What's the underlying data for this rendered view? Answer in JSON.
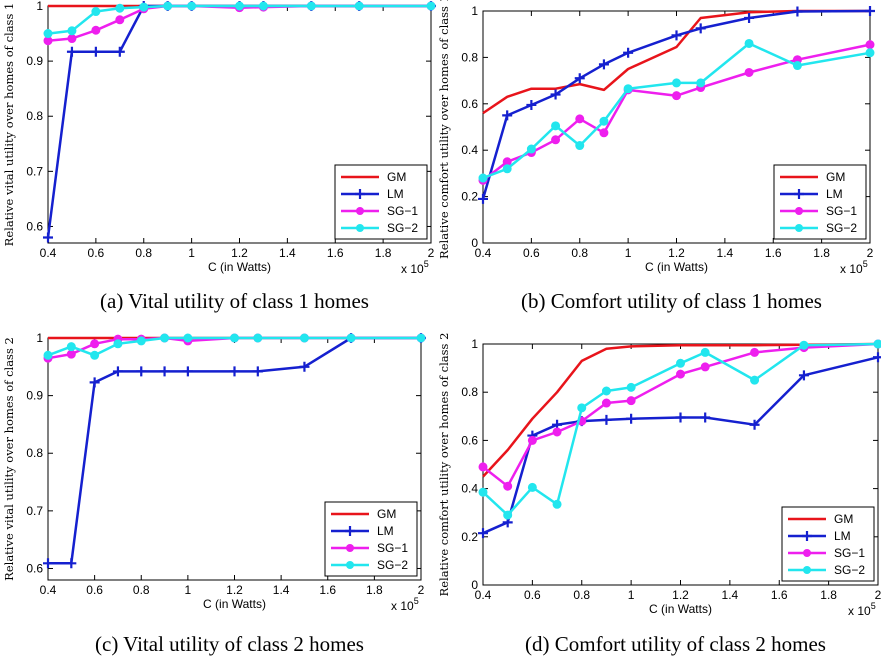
{
  "chart_data": [
    {
      "type": "line",
      "caption": "(a) Vital utility of class 1 homes",
      "xlabel": "C (in Watts)",
      "ylabel": "Relative vital utility over homes of class 1",
      "x_multiplier_label": "x 10",
      "x_multiplier_exp": "5",
      "xlim": [
        0.4,
        2
      ],
      "ylim": [
        0.57,
        1
      ],
      "xticks": [
        0.4,
        0.6,
        0.8,
        1,
        1.2,
        1.4,
        1.6,
        1.8,
        2
      ],
      "xtick_labels": [
        "0.4",
        "0.6",
        "0.8",
        "1",
        "1.2",
        "1.4",
        "1.6",
        "1.8",
        "2"
      ],
      "yticks": [
        0.6,
        0.7,
        0.8,
        0.9,
        1
      ],
      "ytick_labels": [
        "0.6",
        "0.7",
        "0.8",
        "0.9",
        "1"
      ],
      "legend_position": "bottom-right",
      "series": [
        {
          "name": "GM",
          "color": "#e8141b",
          "marker": "none",
          "x": [
            0.4,
            0.5,
            0.6,
            0.7,
            0.8,
            0.9,
            1,
            1.2,
            1.3,
            1.5,
            1.7,
            2
          ],
          "y": [
            1,
            1,
            1,
            1,
            1,
            1,
            1,
            1,
            1,
            1,
            1,
            1
          ]
        },
        {
          "name": "LM",
          "color": "#1520cf",
          "marker": "plus",
          "x": [
            0.4,
            0.5,
            0.6,
            0.7,
            0.8,
            0.9,
            1,
            1.2,
            1.3,
            1.5,
            1.7,
            2
          ],
          "y": [
            0.58,
            0.917,
            0.917,
            0.917,
            1,
            1,
            1,
            1,
            1,
            1,
            1,
            1
          ]
        },
        {
          "name": "SG−1",
          "color": "#ee1fee",
          "marker": "circle",
          "x": [
            0.4,
            0.5,
            0.6,
            0.7,
            0.8,
            0.9,
            1,
            1.2,
            1.3,
            1.5,
            1.7,
            2
          ],
          "y": [
            0.937,
            0.941,
            0.956,
            0.975,
            0.995,
            1,
            1,
            0.997,
            0.998,
            1,
            1,
            1
          ]
        },
        {
          "name": "SG−2",
          "color": "#22e6ee",
          "marker": "circle",
          "x": [
            0.4,
            0.5,
            0.6,
            0.7,
            0.8,
            0.9,
            1,
            1.2,
            1.3,
            1.5,
            1.7,
            2
          ],
          "y": [
            0.95,
            0.955,
            0.99,
            0.996,
            0.998,
            1,
            1,
            1,
            1,
            1,
            1,
            1
          ]
        }
      ]
    },
    {
      "type": "line",
      "caption": "(b) Comfort utility of class 1 homes",
      "xlabel": "C (in Watts)",
      "ylabel": "Relative comfort utility over homes of class 1",
      "x_multiplier_label": "x 10",
      "x_multiplier_exp": "5",
      "xlim": [
        0.4,
        2
      ],
      "ylim": [
        0,
        1
      ],
      "xticks": [
        0.4,
        0.6,
        0.8,
        1,
        1.2,
        1.4,
        1.6,
        1.8,
        2
      ],
      "xtick_labels": [
        "0.4",
        "0.6",
        "0.8",
        "1",
        "1.2",
        "1.4",
        "1.6",
        "1.8",
        "2"
      ],
      "yticks": [
        0,
        0.2,
        0.4,
        0.6,
        0.8,
        1
      ],
      "ytick_labels": [
        "0",
        "0.2",
        "0.4",
        "0.6",
        "0.8",
        "1"
      ],
      "legend_position": "bottom-right",
      "series": [
        {
          "name": "GM",
          "color": "#e8141b",
          "marker": "none",
          "x": [
            0.4,
            0.5,
            0.6,
            0.7,
            0.8,
            0.9,
            1,
            1.2,
            1.3,
            1.5,
            1.7,
            2
          ],
          "y": [
            0.56,
            0.63,
            0.665,
            0.665,
            0.685,
            0.66,
            0.75,
            0.845,
            0.97,
            0.995,
            1,
            1
          ]
        },
        {
          "name": "LM",
          "color": "#1520cf",
          "marker": "plus",
          "x": [
            0.4,
            0.5,
            0.6,
            0.7,
            0.8,
            0.9,
            1,
            1.2,
            1.3,
            1.5,
            1.7,
            2
          ],
          "y": [
            0.19,
            0.55,
            0.595,
            0.64,
            0.71,
            0.77,
            0.82,
            0.895,
            0.925,
            0.97,
            0.998,
            1
          ]
        },
        {
          "name": "SG−1",
          "color": "#ee1fee",
          "marker": "circle",
          "x": [
            0.4,
            0.5,
            0.6,
            0.7,
            0.8,
            0.9,
            1,
            1.2,
            1.3,
            1.5,
            1.7,
            2
          ],
          "y": [
            0.27,
            0.35,
            0.39,
            0.445,
            0.535,
            0.475,
            0.66,
            0.635,
            0.67,
            0.735,
            0.79,
            0.855
          ]
        },
        {
          "name": "SG−2",
          "color": "#22e6ee",
          "marker": "circle",
          "x": [
            0.4,
            0.5,
            0.6,
            0.7,
            0.8,
            0.9,
            1,
            1.2,
            1.3,
            1.5,
            1.7,
            2
          ],
          "y": [
            0.28,
            0.32,
            0.405,
            0.505,
            0.42,
            0.525,
            0.665,
            0.69,
            0.69,
            0.86,
            0.765,
            0.82
          ]
        }
      ]
    },
    {
      "type": "line",
      "caption": "(c) Vital utility of class 2 homes",
      "xlabel": "C (in Watts)",
      "ylabel": "Relative vital utility over homes of class 2",
      "x_multiplier_label": "x 10",
      "x_multiplier_exp": "5",
      "xlim": [
        0.4,
        2
      ],
      "ylim": [
        0.58,
        1
      ],
      "xticks": [
        0.4,
        0.6,
        0.8,
        1,
        1.2,
        1.4,
        1.6,
        1.8,
        2
      ],
      "xtick_labels": [
        "0.4",
        "0.6",
        "0.8",
        "1",
        "1.2",
        "1.4",
        "1.6",
        "1.8",
        "2"
      ],
      "yticks": [
        0.6,
        0.7,
        0.8,
        0.9,
        1
      ],
      "ytick_labels": [
        "0.6",
        "0.7",
        "0.8",
        "0.9",
        "1"
      ],
      "legend_position": "bottom-right",
      "series": [
        {
          "name": "GM",
          "color": "#e8141b",
          "marker": "none",
          "x": [
            0.4,
            0.5,
            0.6,
            0.7,
            0.8,
            0.9,
            1,
            1.2,
            1.3,
            1.5,
            1.7,
            2
          ],
          "y": [
            1,
            1,
            1,
            1,
            1,
            1,
            1,
            1,
            1,
            1,
            1,
            1
          ]
        },
        {
          "name": "LM",
          "color": "#1520cf",
          "marker": "plus",
          "x": [
            0.4,
            0.5,
            0.6,
            0.7,
            0.8,
            0.9,
            1,
            1.2,
            1.3,
            1.5,
            1.7,
            2
          ],
          "y": [
            0.609,
            0.609,
            0.923,
            0.942,
            0.942,
            0.942,
            0.942,
            0.942,
            0.942,
            0.95,
            1,
            1
          ]
        },
        {
          "name": "SG−1",
          "color": "#ee1fee",
          "marker": "circle",
          "x": [
            0.4,
            0.5,
            0.6,
            0.7,
            0.8,
            0.9,
            1,
            1.2,
            1.3,
            1.5,
            1.7,
            2
          ],
          "y": [
            0.965,
            0.972,
            0.99,
            0.998,
            0.998,
            1,
            0.995,
            1,
            1,
            1,
            1,
            1
          ]
        },
        {
          "name": "SG−2",
          "color": "#22e6ee",
          "marker": "circle",
          "x": [
            0.4,
            0.5,
            0.6,
            0.7,
            0.8,
            0.9,
            1,
            1.2,
            1.3,
            1.5,
            1.7,
            2
          ],
          "y": [
            0.97,
            0.985,
            0.97,
            0.99,
            0.995,
            1,
            1,
            1,
            1,
            1,
            1,
            1
          ]
        }
      ]
    },
    {
      "type": "line",
      "caption": "(d) Comfort utility of class 2 homes",
      "xlabel": "C (in Watts)",
      "ylabel": "Relative comfort utility over homes of class 2",
      "x_multiplier_label": "x 10",
      "x_multiplier_exp": "5",
      "xlim": [
        0.4,
        2
      ],
      "ylim": [
        0,
        1
      ],
      "xticks": [
        0.4,
        0.6,
        0.8,
        1,
        1.2,
        1.4,
        1.6,
        1.8,
        2
      ],
      "xtick_labels": [
        "0.4",
        "0.6",
        "0.8",
        "1",
        "1.2",
        "1.4",
        "1.6",
        "1.8",
        "2"
      ],
      "yticks": [
        0,
        0.2,
        0.4,
        0.6,
        0.8,
        1
      ],
      "ytick_labels": [
        "0",
        "0.2",
        "0.4",
        "0.6",
        "0.8",
        "1"
      ],
      "legend_position": "bottom-right",
      "series": [
        {
          "name": "GM",
          "color": "#e8141b",
          "marker": "none",
          "x": [
            0.4,
            0.5,
            0.6,
            0.7,
            0.8,
            0.9,
            1,
            1.2,
            1.3,
            1.5,
            1.7,
            2
          ],
          "y": [
            0.45,
            0.56,
            0.69,
            0.8,
            0.93,
            0.98,
            0.99,
            0.995,
            0.995,
            0.995,
            0.997,
            1
          ]
        },
        {
          "name": "LM",
          "color": "#1520cf",
          "marker": "plus",
          "x": [
            0.4,
            0.5,
            0.6,
            0.7,
            0.8,
            0.9,
            1,
            1.2,
            1.3,
            1.5,
            1.7,
            2
          ],
          "y": [
            0.215,
            0.26,
            0.62,
            0.665,
            0.68,
            0.685,
            0.69,
            0.695,
            0.695,
            0.665,
            0.87,
            0.945
          ]
        },
        {
          "name": "SG−1",
          "color": "#ee1fee",
          "marker": "circle",
          "x": [
            0.4,
            0.5,
            0.6,
            0.7,
            0.8,
            0.9,
            1,
            1.2,
            1.3,
            1.5,
            1.7,
            2
          ],
          "y": [
            0.49,
            0.41,
            0.6,
            0.635,
            0.68,
            0.755,
            0.765,
            0.875,
            0.905,
            0.965,
            0.985,
            1
          ]
        },
        {
          "name": "SG−2",
          "color": "#22e6ee",
          "marker": "circle",
          "x": [
            0.4,
            0.5,
            0.6,
            0.7,
            0.8,
            0.9,
            1,
            1.2,
            1.3,
            1.5,
            1.7,
            2
          ],
          "y": [
            0.385,
            0.29,
            0.405,
            0.335,
            0.735,
            0.805,
            0.82,
            0.92,
            0.965,
            0.85,
            0.995,
            1
          ]
        }
      ]
    }
  ]
}
